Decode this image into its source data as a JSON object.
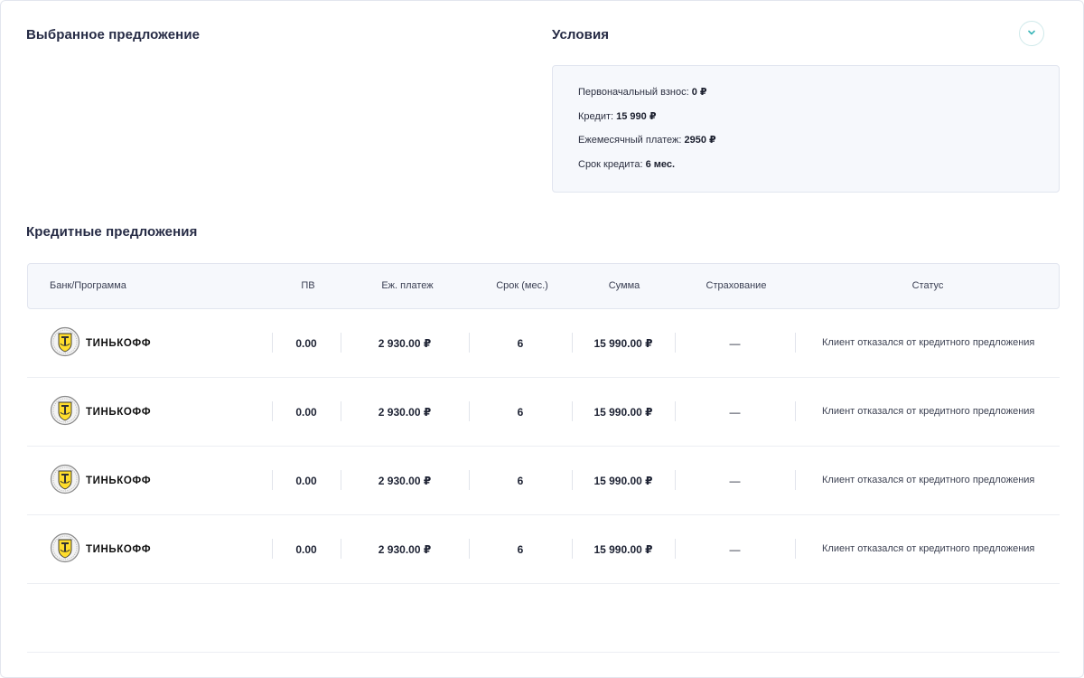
{
  "selected_offer": {
    "title": "Выбранное предложение"
  },
  "conditions": {
    "title": "Условия",
    "collapse_icon": "chevron-down-icon",
    "accent_color": "#3ab5b8",
    "down_payment_label": "Первоначальный взнос:",
    "down_payment_value": "0 ₽",
    "credit_label": "Кредит:",
    "credit_value": "15 990 ₽",
    "monthly_label": "Ежемесячный платеж:",
    "monthly_value": "2950 ₽",
    "term_label": "Срок кредита:",
    "term_value": "6 мес."
  },
  "offers": {
    "title": "Кредитные предложения",
    "columns": [
      "Банк/Программа",
      "ПВ",
      "Еж. платеж",
      "Срок (мес.)",
      "Сумма",
      "Страхование",
      "Статус"
    ],
    "rows": [
      {
        "bank": "ТИНЬКОФФ",
        "logo_icon": "tinkoff-logo-icon",
        "pv": "0.00",
        "payment": "2 930.00 ₽",
        "term": "6",
        "sum": "15 990.00 ₽",
        "insurance": "—",
        "status": "Клиент отказался от кредитного предложения"
      },
      {
        "bank": "ТИНЬКОФФ",
        "logo_icon": "tinkoff-logo-icon",
        "pv": "0.00",
        "payment": "2 930.00 ₽",
        "term": "6",
        "sum": "15 990.00 ₽",
        "insurance": "—",
        "status": "Клиент отказался от кредитного предложения"
      },
      {
        "bank": "ТИНЬКОФФ",
        "logo_icon": "tinkoff-logo-icon",
        "pv": "0.00",
        "payment": "2 930.00 ₽",
        "term": "6",
        "sum": "15 990.00 ₽",
        "insurance": "—",
        "status": "Клиент отказался от кредитного предложения"
      },
      {
        "bank": "ТИНЬКОФФ",
        "logo_icon": "tinkoff-logo-icon",
        "pv": "0.00",
        "payment": "2 930.00 ₽",
        "term": "6",
        "sum": "15 990.00 ₽",
        "insurance": "—",
        "status": "Клиент отказался от кредитного предложения"
      }
    ]
  }
}
